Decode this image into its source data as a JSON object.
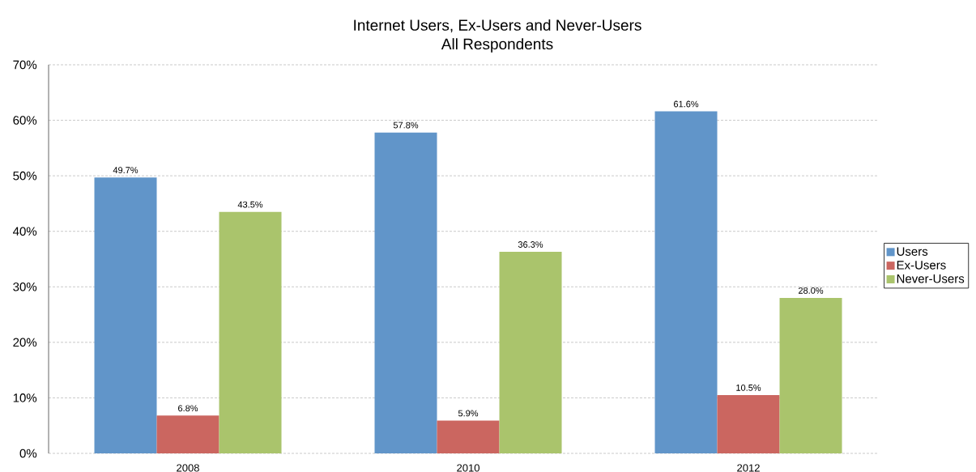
{
  "chart_data": {
    "type": "bar",
    "title": "Internet Users, Ex-Users and Never-Users",
    "subtitle": "All Respondents",
    "categories": [
      "2008",
      "2010",
      "2012"
    ],
    "series": [
      {
        "name": "Users",
        "color": "#6195c9",
        "values": [
          49.7,
          57.8,
          61.6
        ],
        "value_labels": [
          "49.7%",
          "57.8%",
          "61.6%"
        ]
      },
      {
        "name": "Ex-Users",
        "color": "#cb6660",
        "values": [
          6.8,
          5.9,
          10.5
        ],
        "value_labels": [
          "6.8%",
          "5.9%",
          "10.5%"
        ]
      },
      {
        "name": "Never-Users",
        "color": "#aac46c",
        "values": [
          43.5,
          36.3,
          28.0
        ],
        "value_labels": [
          "43.5%",
          "36.3%",
          "28.0%"
        ]
      }
    ],
    "ylim": [
      0,
      70
    ],
    "yticks": [
      {
        "value": 0,
        "label": "0%"
      },
      {
        "value": 10,
        "label": "10%"
      },
      {
        "value": 20,
        "label": "20%"
      },
      {
        "value": 30,
        "label": "30%"
      },
      {
        "value": 40,
        "label": "40%"
      },
      {
        "value": 50,
        "label": "50%"
      },
      {
        "value": 60,
        "label": "60%"
      },
      {
        "value": 70,
        "label": "70%"
      }
    ],
    "grid": "y",
    "legend": "right"
  }
}
